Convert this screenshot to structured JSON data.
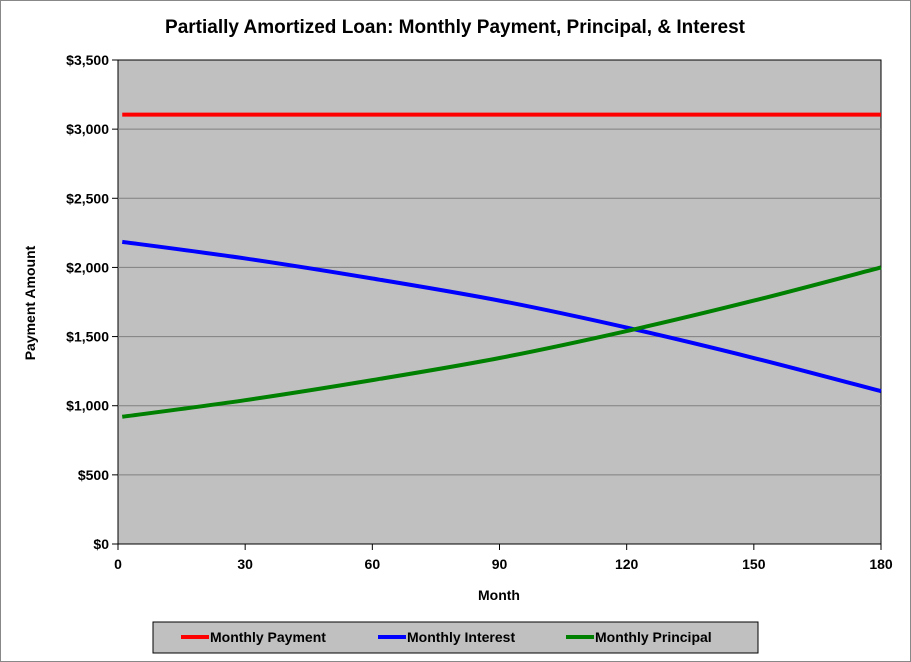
{
  "chart_data": {
    "type": "line",
    "title": "Partially Amortized Loan: Monthly Payment, Principal, & Interest",
    "xlabel": "Month",
    "ylabel": "Payment  Amount",
    "xlim": [
      0,
      180
    ],
    "ylim": [
      0,
      3500
    ],
    "x_ticks": [
      0,
      30,
      60,
      90,
      120,
      150,
      180
    ],
    "x_tick_labels": [
      "0",
      "30",
      "60",
      "90",
      "120",
      "150",
      "180"
    ],
    "y_ticks": [
      0,
      500,
      1000,
      1500,
      2000,
      2500,
      3000,
      3500
    ],
    "y_tick_labels": [
      "$0",
      "$500",
      "$1,000",
      "$1,500",
      "$2,000",
      "$2,500",
      "$3,000",
      "$3,500"
    ],
    "grid": "horizontal",
    "plot_background": "#c0c0c0",
    "legend_position": "bottom",
    "x": [
      1,
      30,
      60,
      90,
      120,
      150,
      180
    ],
    "series": [
      {
        "name": "Monthly Payment",
        "color": "#ff0000",
        "values": [
          3105,
          3105,
          3105,
          3105,
          3105,
          3105,
          3105
        ]
      },
      {
        "name": "Monthly Interest",
        "color": "#0000ff",
        "values": [
          2185,
          2065,
          1920,
          1760,
          1565,
          1345,
          1105
        ]
      },
      {
        "name": "Monthly Principal",
        "color": "#008000",
        "values": [
          920,
          1040,
          1185,
          1345,
          1540,
          1760,
          2000
        ]
      }
    ]
  }
}
